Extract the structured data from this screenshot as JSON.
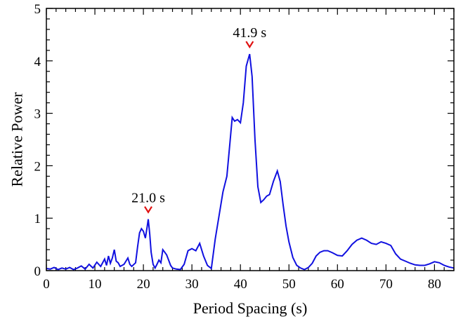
{
  "chart_data": {
    "type": "line",
    "xlabel": "Period Spacing (s)",
    "ylabel": "Relative Power",
    "xlim": [
      0,
      84
    ],
    "ylim": [
      0,
      5
    ],
    "x_ticks": [
      0,
      10,
      20,
      30,
      40,
      50,
      60,
      70,
      80
    ],
    "y_ticks": [
      0,
      1,
      2,
      3,
      4,
      5
    ],
    "grid": false,
    "line_color": "#1010e0",
    "marker_color": "#e01010",
    "annotations": [
      {
        "x": 21.0,
        "y": 0.98,
        "text": "21.0 s"
      },
      {
        "x": 41.9,
        "y": 4.13,
        "text": "41.9 s"
      }
    ],
    "series": [
      {
        "x": [
          0,
          0.8,
          1.6,
          2.4,
          3.2,
          4.0,
          4.8,
          5.6,
          6.4,
          7.2,
          8.0,
          8.8,
          9.6,
          10.4,
          11.2,
          12.0,
          12.4,
          12.8,
          13.2,
          13.6,
          14.0,
          14.4,
          14.8,
          15.2,
          16.0,
          16.8,
          17.2,
          17.6,
          18.4,
          18.8,
          19.2,
          19.6,
          20.0,
          20.4,
          20.8,
          21.0,
          21.3,
          21.6,
          22.0,
          22.4,
          22.8,
          23.2,
          23.6,
          24.0,
          24.4,
          24.8,
          25.2,
          25.6,
          26.0,
          26.8,
          27.6,
          28.4,
          29.2,
          30.0,
          30.8,
          31.6,
          32.4,
          33.2,
          34.0,
          34.8,
          35.6,
          36.4,
          37.2,
          37.8,
          38.3,
          38.8,
          39.4,
          40.0,
          40.6,
          41.2,
          41.9,
          42.4,
          43.0,
          43.6,
          44.2,
          44.8,
          45.4,
          46.0,
          46.8,
          47.6,
          48.2,
          48.8,
          49.4,
          50.0,
          50.8,
          51.6,
          52.4,
          53.2,
          54.0,
          54.8,
          55.6,
          56.4,
          57.2,
          58.0,
          59.0,
          60.0,
          61.0,
          62.0,
          63.0,
          64.0,
          65.0,
          66.0,
          67.0,
          68.0,
          69.0,
          70.0,
          71.0,
          72.0,
          73.0,
          74.0,
          75.0,
          76.0,
          77.0,
          78.0,
          79.0,
          80.0,
          81.0,
          82.0,
          83.0,
          84.0
        ],
        "y": [
          0.04,
          0.03,
          0.06,
          0.02,
          0.05,
          0.03,
          0.06,
          0.02,
          0.05,
          0.09,
          0.03,
          0.12,
          0.05,
          0.16,
          0.08,
          0.22,
          0.1,
          0.28,
          0.14,
          0.24,
          0.4,
          0.18,
          0.15,
          0.08,
          0.12,
          0.24,
          0.12,
          0.08,
          0.15,
          0.45,
          0.72,
          0.8,
          0.75,
          0.62,
          0.85,
          0.98,
          0.7,
          0.35,
          0.12,
          0.05,
          0.12,
          0.2,
          0.15,
          0.4,
          0.35,
          0.3,
          0.2,
          0.1,
          0.05,
          0.03,
          0.02,
          0.12,
          0.38,
          0.42,
          0.38,
          0.52,
          0.28,
          0.1,
          0.04,
          0.6,
          1.05,
          1.5,
          1.8,
          2.4,
          2.92,
          2.85,
          2.88,
          2.82,
          3.2,
          3.9,
          4.13,
          3.7,
          2.5,
          1.6,
          1.3,
          1.35,
          1.42,
          1.45,
          1.7,
          1.9,
          1.7,
          1.25,
          0.85,
          0.55,
          0.25,
          0.1,
          0.05,
          0.02,
          0.06,
          0.14,
          0.28,
          0.35,
          0.38,
          0.38,
          0.34,
          0.29,
          0.28,
          0.38,
          0.5,
          0.58,
          0.62,
          0.58,
          0.52,
          0.5,
          0.55,
          0.52,
          0.48,
          0.32,
          0.22,
          0.18,
          0.14,
          0.11,
          0.1,
          0.1,
          0.13,
          0.17,
          0.15,
          0.1,
          0.07,
          0.05
        ]
      }
    ]
  }
}
